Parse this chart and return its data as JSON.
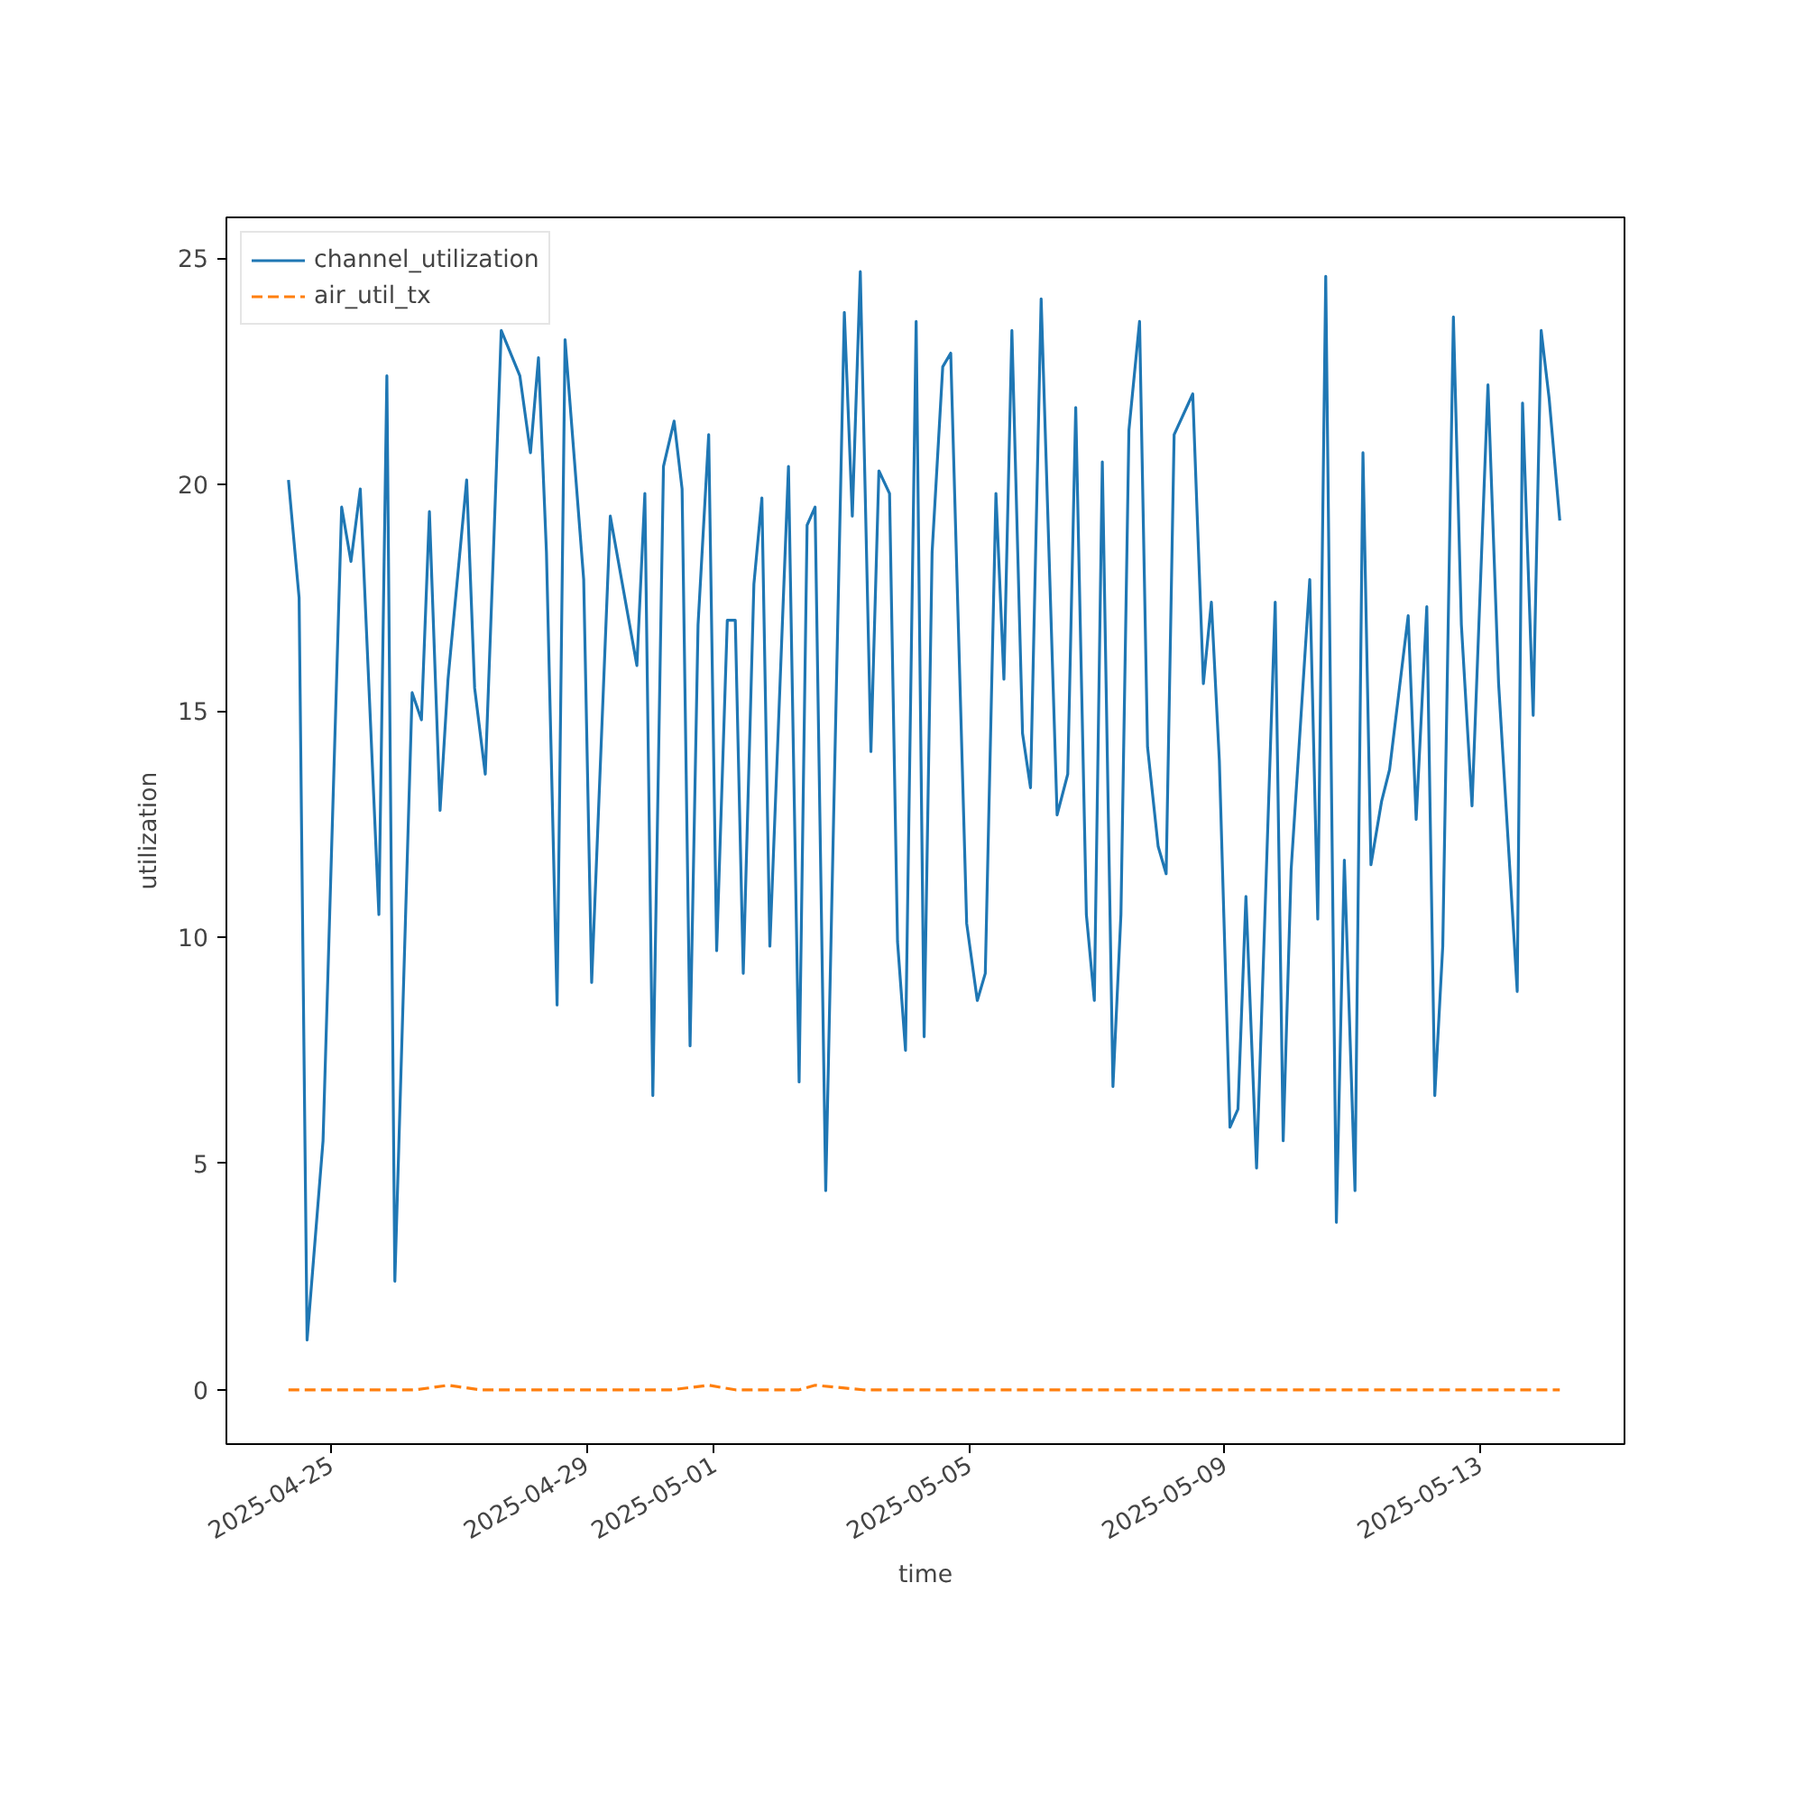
{
  "chart_data": {
    "type": "line",
    "xlabel": "time",
    "ylabel": "utilization",
    "xlim": [
      "2025-04-23T08:40",
      "2025-05-15T06:20"
    ],
    "ylim": [
      -1.2,
      25.9
    ],
    "xticks": [
      {
        "value": "2025-04-25",
        "label": "2025-04-25"
      },
      {
        "value": "2025-04-29",
        "label": "2025-04-29"
      },
      {
        "value": "2025-05-01",
        "label": "2025-05-01"
      },
      {
        "value": "2025-05-05",
        "label": "2025-05-05"
      },
      {
        "value": "2025-05-09",
        "label": "2025-05-09"
      },
      {
        "value": "2025-05-13",
        "label": "2025-05-13"
      }
    ],
    "yticks": [
      0,
      5,
      10,
      15,
      20,
      25
    ],
    "grid": false,
    "legend": "top left",
    "marker": "none",
    "series": [
      {
        "name": "channel_utilization",
        "color": "#1f77b4",
        "line_style": "solid",
        "x": [
          "2025-04-24T08:00",
          "2025-04-24T12:00",
          "2025-04-24T15:00",
          "2025-04-24T21:00",
          "2025-04-25T04:00",
          "2025-04-25T07:30",
          "2025-04-25T11:00",
          "2025-04-25T18:00",
          "2025-04-25T21:00",
          "2025-04-26T00:00",
          "2025-04-26T06:30",
          "2025-04-26T10:00",
          "2025-04-26T13:00",
          "2025-04-26T17:00",
          "2025-04-26T20:00",
          "2025-04-27T03:00",
          "2025-04-27T06:00",
          "2025-04-27T10:00",
          "2025-04-27T13:00",
          "2025-04-27T16:00",
          "2025-04-27T23:00",
          "2025-04-28T03:00",
          "2025-04-28T06:00",
          "2025-04-28T09:00",
          "2025-04-28T13:00",
          "2025-04-28T16:00",
          "2025-04-28T23:00",
          "2025-04-29T02:00",
          "2025-04-29T09:00",
          "2025-04-29T19:00",
          "2025-04-29T22:00",
          "2025-04-30T01:00",
          "2025-04-30T05:00",
          "2025-04-30T09:00",
          "2025-04-30T12:00",
          "2025-04-30T15:00",
          "2025-04-30T18:00",
          "2025-04-30T22:00",
          "2025-05-01T01:00",
          "2025-05-01T05:00",
          "2025-05-01T08:00",
          "2025-05-01T11:00",
          "2025-05-01T15:00",
          "2025-05-01T18:00",
          "2025-05-01T21:00",
          "2025-05-02T04:00",
          "2025-05-02T08:00",
          "2025-05-02T11:00",
          "2025-05-02T14:00",
          "2025-05-02T18:00",
          "2025-05-03T01:00",
          "2025-05-03T04:00",
          "2025-05-03T07:00",
          "2025-05-03T11:00",
          "2025-05-03T14:00",
          "2025-05-03T18:00",
          "2025-05-03T21:00",
          "2025-05-04T00:00",
          "2025-05-04T04:00",
          "2025-05-04T07:00",
          "2025-05-04T10:00",
          "2025-05-04T14:00",
          "2025-05-04T17:00",
          "2025-05-04T23:00",
          "2025-05-05T03:00",
          "2025-05-05T06:00",
          "2025-05-05T10:00",
          "2025-05-05T13:00",
          "2025-05-05T16:00",
          "2025-05-05T20:00",
          "2025-05-05T23:00",
          "2025-05-06T03:00",
          "2025-05-06T09:00",
          "2025-05-06T13:00",
          "2025-05-06T16:00",
          "2025-05-06T20:00",
          "2025-05-06T23:00",
          "2025-05-07T02:00",
          "2025-05-07T06:00",
          "2025-05-07T09:00",
          "2025-05-07T12:00",
          "2025-05-07T16:00",
          "2025-05-07T19:00",
          "2025-05-07T23:00",
          "2025-05-08T02:00",
          "2025-05-08T05:00",
          "2025-05-08T12:00",
          "2025-05-08T16:00",
          "2025-05-08T19:00",
          "2025-05-08T22:00",
          "2025-05-09T02:00",
          "2025-05-09T05:00",
          "2025-05-09T08:00",
          "2025-05-09T12:00",
          "2025-05-09T19:00",
          "2025-05-09T22:00",
          "2025-05-10T01:00",
          "2025-05-10T08:00",
          "2025-05-10T11:00",
          "2025-05-10T14:00",
          "2025-05-10T18:00",
          "2025-05-10T21:00",
          "2025-05-11T01:00",
          "2025-05-11T04:00",
          "2025-05-11T07:00",
          "2025-05-11T11:00",
          "2025-05-11T14:00",
          "2025-05-11T21:00",
          "2025-05-12T00:00",
          "2025-05-12T04:00",
          "2025-05-12T07:00",
          "2025-05-12T10:00",
          "2025-05-12T14:00",
          "2025-05-12T17:00",
          "2025-05-12T21:00",
          "2025-05-13T03:00",
          "2025-05-13T07:00",
          "2025-05-13T14:00",
          "2025-05-13T16:00",
          "2025-05-13T20:00",
          "2025-05-13T23:00",
          "2025-05-14T02:00",
          "2025-05-14T06:00"
        ],
        "values": [
          20.1,
          17.5,
          1.1,
          5.5,
          19.5,
          18.3,
          19.9,
          10.5,
          22.4,
          2.4,
          15.4,
          14.8,
          19.4,
          12.8,
          15.7,
          20.1,
          15.5,
          13.6,
          18.4,
          23.4,
          22.4,
          20.7,
          22.8,
          18.5,
          8.5,
          23.2,
          17.9,
          9.0,
          19.3,
          16.0,
          19.8,
          6.5,
          20.4,
          21.4,
          19.9,
          7.6,
          16.9,
          21.1,
          9.7,
          17.0,
          17.0,
          9.2,
          17.8,
          19.7,
          9.8,
          20.4,
          6.8,
          19.1,
          19.5,
          4.4,
          23.8,
          19.3,
          24.7,
          14.1,
          20.3,
          19.8,
          9.9,
          7.5,
          23.6,
          7.8,
          18.5,
          22.6,
          22.9,
          10.3,
          8.6,
          9.2,
          19.8,
          15.7,
          23.4,
          14.5,
          13.3,
          24.1,
          12.7,
          13.6,
          21.7,
          10.5,
          8.6,
          20.5,
          6.7,
          10.5,
          21.2,
          23.6,
          14.2,
          12.0,
          11.4,
          21.1,
          22.0,
          15.6,
          17.4,
          13.9,
          5.8,
          6.2,
          10.9,
          4.9,
          17.4,
          5.5,
          11.5,
          17.9,
          10.4,
          24.6,
          3.7,
          11.7,
          4.4,
          20.7,
          11.6,
          13.0,
          13.7,
          17.1,
          12.6,
          17.3,
          6.5,
          9.8,
          23.7,
          16.9,
          12.9,
          22.2,
          15.6,
          8.8,
          21.8,
          14.9,
          23.4,
          21.9,
          19.2
        ]
      },
      {
        "name": "air_util_tx",
        "color": "#ff7f0e",
        "line_style": "dashed",
        "x": [
          "2025-04-24T08:00",
          "2025-04-25T08:00",
          "2025-04-26T08:00",
          "2025-04-26T20:00",
          "2025-04-27T08:00",
          "2025-04-28T08:00",
          "2025-04-29T08:00",
          "2025-04-30T08:00",
          "2025-04-30T22:00",
          "2025-05-01T08:00",
          "2025-05-02T08:00",
          "2025-05-02T14:00",
          "2025-05-03T08:00",
          "2025-05-04T08:00",
          "2025-05-05T08:00",
          "2025-05-06T08:00",
          "2025-05-07T08:00",
          "2025-05-08T08:00",
          "2025-05-09T08:00",
          "2025-05-10T08:00",
          "2025-05-11T08:00",
          "2025-05-12T08:00",
          "2025-05-13T08:00",
          "2025-05-14T06:00"
        ],
        "values": [
          0.0,
          0.0,
          0.0,
          0.1,
          0.0,
          0.0,
          0.0,
          0.0,
          0.1,
          0.0,
          0.0,
          0.1,
          0.0,
          0.0,
          0.0,
          0.0,
          0.0,
          0.0,
          0.0,
          0.0,
          0.0,
          0.0,
          0.0,
          0.0
        ]
      }
    ]
  }
}
